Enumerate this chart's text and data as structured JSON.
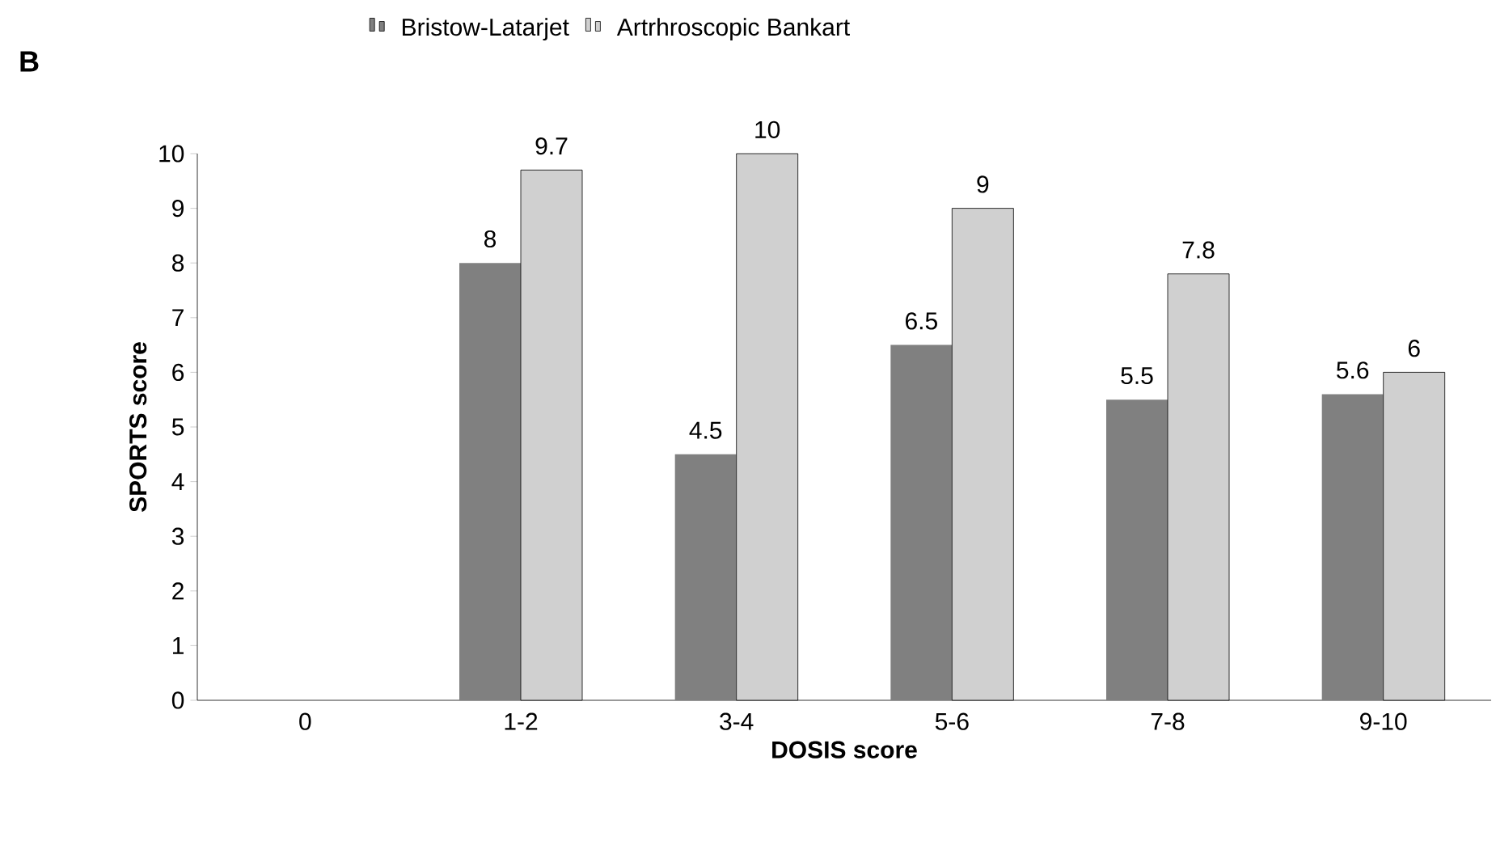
{
  "chart_data": {
    "type": "bar",
    "xlabel": "DOSIS score",
    "ylabel": "SPORTS score",
    "annotations": [
      "B"
    ],
    "categories": [
      "0",
      "1-2",
      "3-4",
      "5-6",
      "7-8",
      "9-10"
    ],
    "series": [
      {
        "name": "Bristow-Latarjet",
        "color": "#808080",
        "values": [
          null,
          8,
          4.5,
          6.5,
          5.5,
          5.6
        ]
      },
      {
        "name": "Artrhroscopic Bankart",
        "color": "#d0d0d0",
        "values": [
          null,
          9.7,
          10,
          9,
          7.8,
          6
        ]
      }
    ],
    "ylim": [
      0,
      10
    ],
    "yticks": [
      0,
      1,
      2,
      3,
      4,
      5,
      6,
      7,
      8,
      9,
      10
    ],
    "grid": false,
    "legend": "top",
    "data_labels": true
  }
}
